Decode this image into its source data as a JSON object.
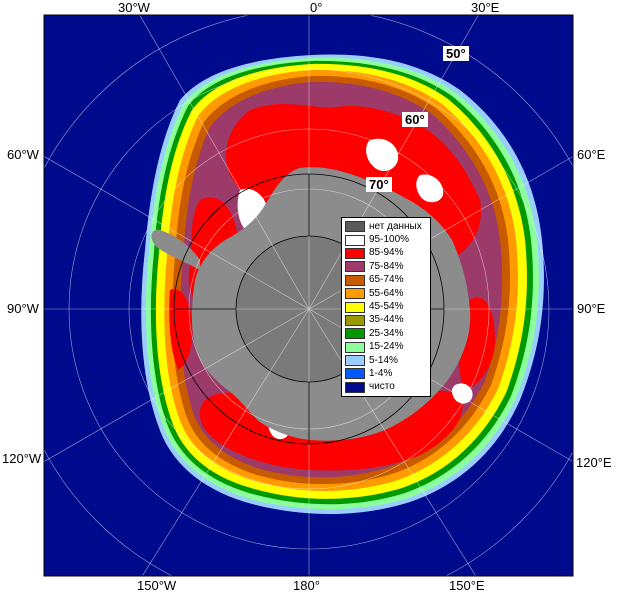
{
  "map": {
    "lon_labels": {
      "top_left": "30°W",
      "top_center": "0°",
      "top_right": "30°E",
      "left_upper": "60°W",
      "right_upper": "60°E",
      "left_middle": "90°W",
      "right_middle": "90°E",
      "left_lower": "120°W",
      "right_lower": "120°E",
      "bottom_left": "150°W",
      "bottom_center": "180°",
      "bottom_right": "150°E"
    },
    "lat_labels": {
      "lat50": "50°",
      "lat60": "60°",
      "lat70": "70°"
    },
    "colors": {
      "ocean": "#000a8c",
      "land": "#8c8c8c",
      "no_data": "#5a5a5a"
    }
  },
  "legend": {
    "items": [
      {
        "label": "нет данных",
        "color": "#5a5a5a"
      },
      {
        "label": "95-100%",
        "color": "#ffffff"
      },
      {
        "label": "85-94%",
        "color": "#ff0000"
      },
      {
        "label": "75-84%",
        "color": "#9c3a6a"
      },
      {
        "label": "65-74%",
        "color": "#c85a00"
      },
      {
        "label": "55-64%",
        "color": "#ff9a00"
      },
      {
        "label": "45-54%",
        "color": "#ffff00"
      },
      {
        "label": "35-44%",
        "color": "#9a9a00"
      },
      {
        "label": "25-34%",
        "color": "#009a00"
      },
      {
        "label": "15-24%",
        "color": "#8cff9a"
      },
      {
        "label": "5-14%",
        "color": "#9acdff"
      },
      {
        "label": "1-4%",
        "color": "#005aff"
      },
      {
        "label": "чисто",
        "color": "#000a8c"
      }
    ]
  }
}
